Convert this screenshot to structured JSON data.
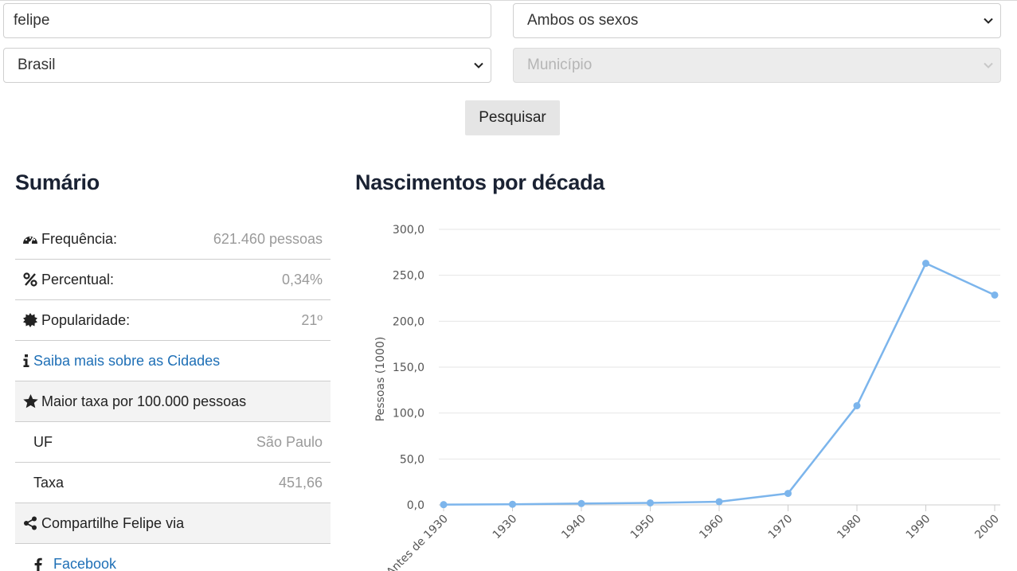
{
  "search": {
    "name_value": "felipe",
    "sex_select": "Ambos os sexos",
    "region_select": "Brasil",
    "city_select": "Município",
    "button_label": "Pesquisar"
  },
  "summary": {
    "title": "Sumário",
    "frequency_label": "Frequência:",
    "frequency_value": "621.460 pessoas",
    "percent_label": "Percentual:",
    "percent_value": "0,34%",
    "popularity_label": "Popularidade:",
    "popularity_value": "21º",
    "cities_link": "Saiba mais sobre as Cidades",
    "max_rate_label": "Maior taxa por 100.000 pessoas",
    "uf_label": "UF",
    "uf_value": "São Paulo",
    "rate_label": "Taxa",
    "rate_value": "451,66",
    "share_label": "Compartilhe Felipe via",
    "facebook_label": "Facebook"
  },
  "chart_title": "Nascimentos por década",
  "chart_data": {
    "type": "line",
    "ylabel": "Pessoas (1000)",
    "ylim": [
      0,
      300
    ],
    "y_ticks": [
      "0,0",
      "50,0",
      "100,0",
      "150,0",
      "200,0",
      "250,0",
      "300,0"
    ],
    "grid": true,
    "categories": [
      "Antes de 1930",
      "1930",
      "1940",
      "1950",
      "1960",
      "1970",
      "1980",
      "1990",
      "2000"
    ],
    "values": [
      0.3,
      0.7,
      1.5,
      2.2,
      3.5,
      12.5,
      108.0,
      263.0,
      228.5
    ],
    "line_color": "#7cb5ec"
  }
}
